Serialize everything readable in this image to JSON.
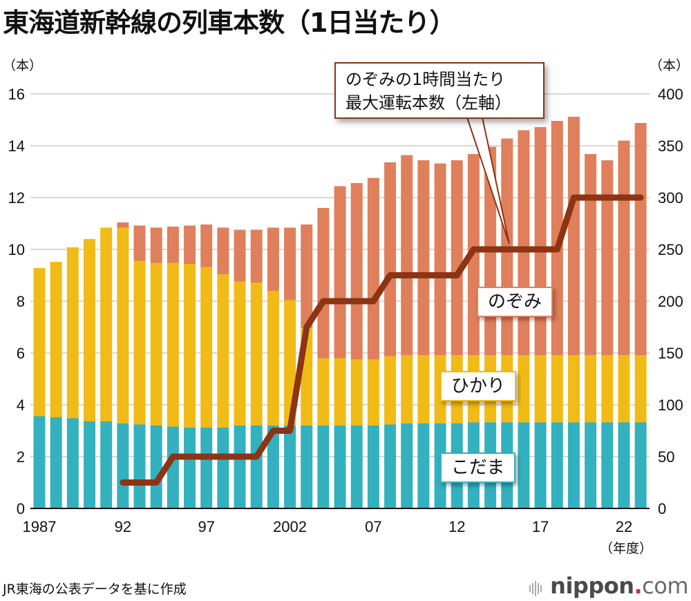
{
  "title": "東海道新幹線の列車本数（1日当たり）",
  "source": "JR東海の公表データを基に作成",
  "logo": {
    "main": "nippon",
    "dot": ".",
    "suffix": "com"
  },
  "colors": {
    "kodama": "#33b1be",
    "hikari": "#f1bb17",
    "nozomi": "#e07f5c",
    "line": "#8c3414",
    "grid": "#cccccc"
  },
  "chart_data": {
    "type": "bar",
    "stacked": true,
    "title": "東海道新幹線の列車本数（1日当たり）",
    "xlabel": "（年度）",
    "left_axis": {
      "unit": "（本）",
      "ylim": [
        0,
        16
      ],
      "ticks": [
        "0",
        "2",
        "4",
        "6",
        "8",
        "10",
        "12",
        "14",
        "16"
      ]
    },
    "right_axis": {
      "unit": "（本）",
      "ylim": [
        0,
        400
      ],
      "ticks": [
        "0",
        "50",
        "100",
        "150",
        "200",
        "250",
        "300",
        "350",
        "400"
      ]
    },
    "x_tick_labels": [
      {
        "year": 1987,
        "label": "1987"
      },
      {
        "year": 1992,
        "label": "92"
      },
      {
        "year": 1997,
        "label": "97"
      },
      {
        "year": 2002,
        "label": "2002"
      },
      {
        "year": 2007,
        "label": "07"
      },
      {
        "year": 2012,
        "label": "12"
      },
      {
        "year": 2017,
        "label": "17"
      },
      {
        "year": 2022,
        "label": "22"
      }
    ],
    "grid": true,
    "categories": [
      1987,
      1988,
      1989,
      1990,
      1991,
      1992,
      1993,
      1994,
      1995,
      1996,
      1997,
      1998,
      1999,
      2000,
      2001,
      2002,
      2003,
      2004,
      2005,
      2006,
      2007,
      2008,
      2009,
      2010,
      2011,
      2012,
      2013,
      2014,
      2015,
      2016,
      2017,
      2018,
      2019,
      2020,
      2021,
      2022,
      2023
    ],
    "series": [
      {
        "name": "こだま",
        "axis": "right",
        "type": "bar",
        "values": [
          89,
          88,
          87,
          84,
          84,
          82,
          81,
          80,
          79,
          78,
          78,
          78,
          80,
          80,
          80,
          80,
          80,
          80,
          80,
          80,
          80,
          81,
          82,
          82,
          82,
          82,
          83,
          83,
          83,
          83,
          83,
          83,
          83,
          83,
          83,
          83,
          83
        ]
      },
      {
        "name": "ひかり",
        "axis": "right",
        "type": "bar",
        "values": [
          143,
          150,
          165,
          176,
          187,
          189,
          158,
          157,
          158,
          158,
          155,
          148,
          139,
          138,
          130,
          121,
          94,
          65,
          65,
          64,
          64,
          66,
          66,
          66,
          66,
          66,
          65,
          65,
          65,
          65,
          65,
          65,
          65,
          65,
          65,
          65,
          65
        ]
      },
      {
        "name": "のぞみ",
        "axis": "right",
        "type": "bar",
        "values": [
          0,
          0,
          0,
          0,
          0,
          5,
          34,
          34,
          35,
          37,
          41,
          45,
          50,
          51,
          61,
          70,
          100,
          145,
          166,
          170,
          175,
          187,
          193,
          188,
          185,
          188,
          194,
          201,
          209,
          217,
          220,
          226,
          230,
          194,
          188,
          207,
          224
        ]
      },
      {
        "name": "のぞみの1時間当たり最大運転本数（左軸）",
        "axis": "left",
        "type": "line",
        "values": [
          null,
          null,
          null,
          null,
          null,
          1,
          1,
          1,
          2,
          2,
          2,
          2,
          2,
          2,
          3,
          3,
          7,
          8,
          8,
          8,
          8,
          9,
          9,
          9,
          9,
          9,
          10,
          10,
          10,
          10,
          10,
          10,
          12,
          12,
          12,
          12,
          12
        ]
      }
    ],
    "annotations": {
      "callout": [
        "のぞみの1時間当たり",
        "最大運転本数（左軸）"
      ],
      "nozomi_label": "のぞみ",
      "hikari_label": "ひかり",
      "kodama_label": "こだま"
    }
  }
}
